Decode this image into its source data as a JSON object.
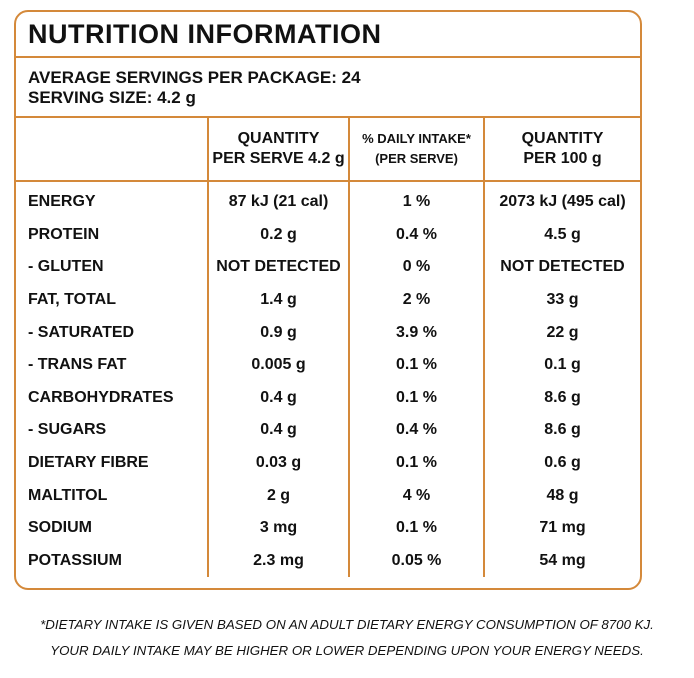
{
  "title": "NUTRITION INFORMATION",
  "servings": [
    "AVERAGE SERVINGS PER PACKAGE: 24",
    "SERVING SIZE: 4.2 g"
  ],
  "table": {
    "header": [
      [
        "QUANTITY",
        "PER SERVE 4.2 g"
      ],
      [
        "% DAILY INTAKE*",
        "(PER SERVE)"
      ],
      [
        "QUANTITY",
        "PER 100 g"
      ]
    ],
    "rows": [
      [
        "ENERGY",
        "87 kJ (21 cal)",
        "1 %",
        "2073 kJ (495 cal)"
      ],
      [
        "PROTEIN",
        "0.2 g",
        "0.4 %",
        "4.5 g"
      ],
      [
        "- GLUTEN",
        "NOT DETECTED",
        "0 %",
        "NOT DETECTED"
      ],
      [
        "FAT, TOTAL",
        "1.4 g",
        "2 %",
        "33 g"
      ],
      [
        "- SATURATED",
        "0.9 g",
        "3.9 %",
        "22 g"
      ],
      [
        "- TRANS FAT",
        "0.005 g",
        "0.1 %",
        "0.1 g"
      ],
      [
        "CARBOHYDRATES",
        "0.4 g",
        "0.1 %",
        "8.6 g"
      ],
      [
        "- SUGARS",
        "0.4 g",
        "0.4 %",
        "8.6 g"
      ],
      [
        "DIETARY FIBRE",
        "0.03 g",
        "0.1 %",
        "0.6 g"
      ],
      [
        "MALTITOL",
        "2 g",
        "4 %",
        "48 g"
      ],
      [
        "SODIUM",
        "3 mg",
        "0.1 %",
        "71 mg"
      ],
      [
        "POTASSIUM",
        "2.3 mg",
        "0.05 %",
        "54 mg"
      ]
    ]
  },
  "footnote": [
    "*DIETARY INTAKE IS GIVEN BASED ON AN ADULT DIETARY ENERGY CONSUMPTION OF 8700 KJ.",
    "YOUR DAILY INTAKE MAY BE HIGHER OR LOWER DEPENDING UPON YOUR ENERGY NEEDS."
  ]
}
